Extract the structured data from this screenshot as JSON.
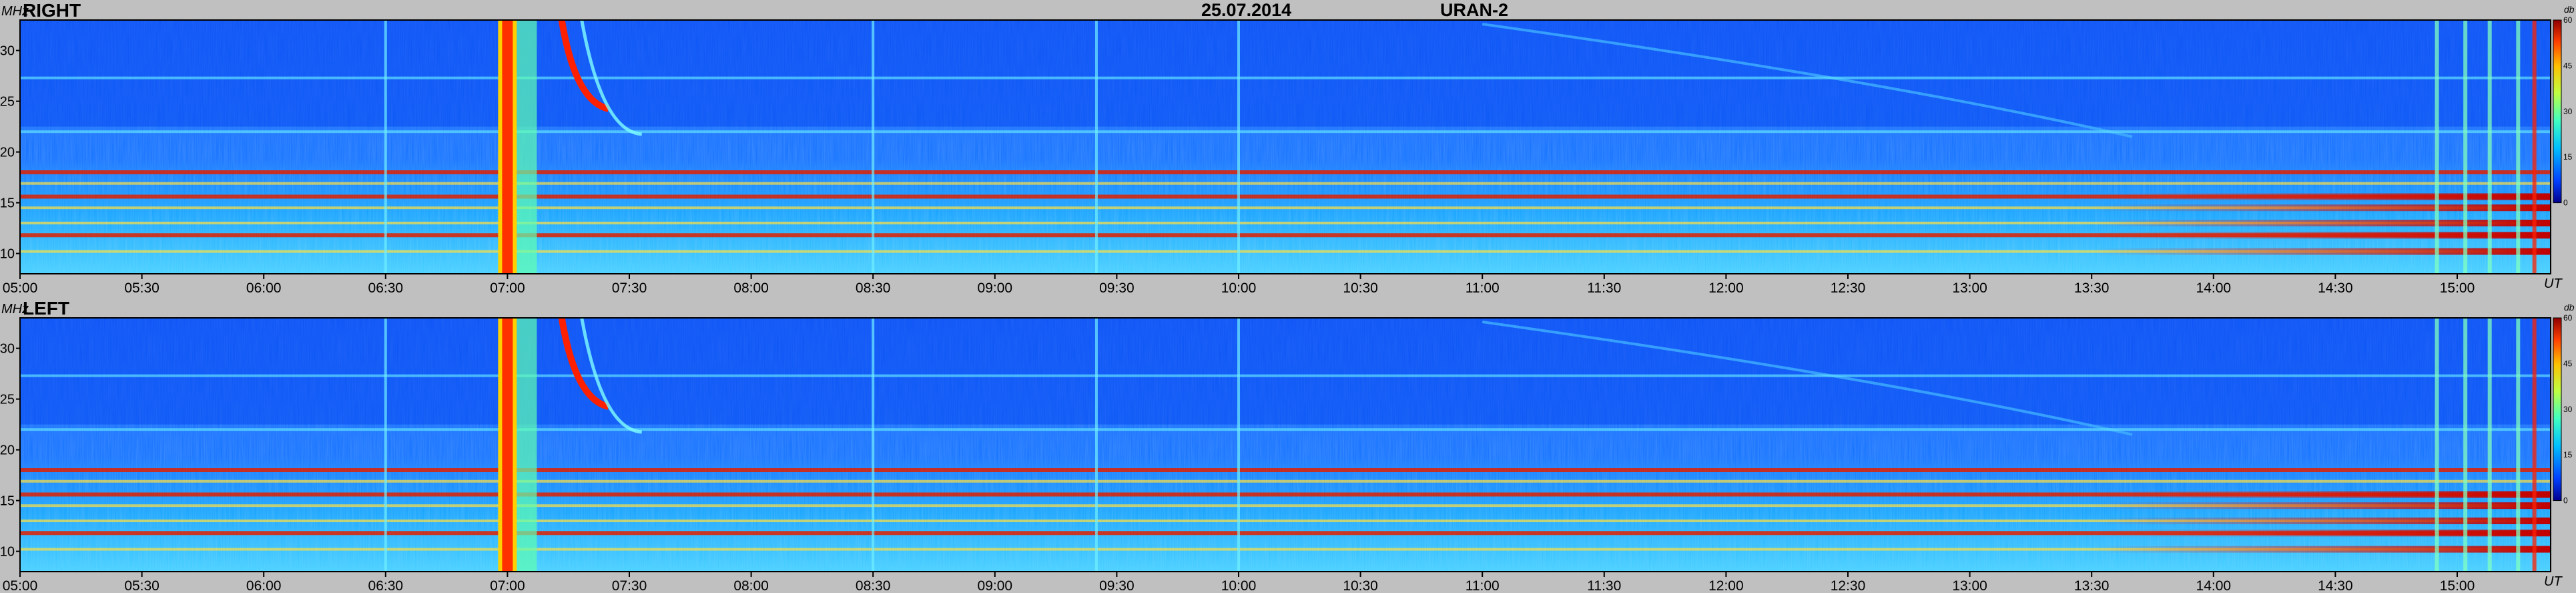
{
  "header": {
    "date": "25.07.2014",
    "instrument": "URAN-2"
  },
  "chart_data": [
    {
      "type": "heatmap",
      "name": "RIGHT",
      "y_unit_label": "MHz",
      "x_unit_label": "UT",
      "colorbar_unit_label": "db",
      "x_ticks": [
        "05:00",
        "05:30",
        "06:00",
        "06:30",
        "07:00",
        "07:30",
        "08:00",
        "08:30",
        "09:00",
        "09:30",
        "10:00",
        "10:30",
        "11:00",
        "11:30",
        "12:00",
        "12:30",
        "13:00",
        "13:30",
        "14:00",
        "14:30",
        "15:00"
      ],
      "y_ticks": [
        "10",
        "15",
        "20",
        "25",
        "30"
      ],
      "colorbar_ticks": [
        "0",
        "15",
        "30",
        "45",
        "60"
      ],
      "xlim": [
        "05:00",
        "15:23"
      ],
      "ylim": [
        8,
        33
      ],
      "zlim": [
        0,
        60
      ],
      "colormap": [
        "#00008f",
        "#0040ff",
        "#00c0ff",
        "#40ffc0",
        "#c0ff40",
        "#ffc000",
        "#ff4000",
        "#8f0000"
      ],
      "features": {
        "band_lines_mhz": [
          10.2,
          11.8,
          13.0,
          14.5,
          15.6,
          16.9,
          18.0,
          22.0,
          27.3
        ],
        "strong_lines_mhz": [
          18.0,
          15.6,
          11.8
        ],
        "burst_times": [
          "07:00"
        ],
        "drifting_bursts": [
          "07:15",
          "07:30"
        ],
        "late_interference_start": "14:55"
      }
    },
    {
      "type": "heatmap",
      "name": "LEFT",
      "y_unit_label": "MHz",
      "x_unit_label": "UT",
      "colorbar_unit_label": "db",
      "x_ticks": [
        "05:00",
        "05:30",
        "06:00",
        "06:30",
        "07:00",
        "07:30",
        "08:00",
        "08:30",
        "09:00",
        "09:30",
        "10:00",
        "10:30",
        "11:00",
        "11:30",
        "12:00",
        "12:30",
        "13:00",
        "13:30",
        "14:00",
        "14:30",
        "15:00"
      ],
      "y_ticks": [
        "10",
        "15",
        "20",
        "25",
        "30"
      ],
      "colorbar_ticks": [
        "0",
        "15",
        "30",
        "45",
        "60"
      ],
      "xlim": [
        "05:00",
        "15:23"
      ],
      "ylim": [
        8,
        33
      ],
      "zlim": [
        0,
        60
      ],
      "colormap": [
        "#00008f",
        "#0040ff",
        "#00c0ff",
        "#40ffc0",
        "#c0ff40",
        "#ffc000",
        "#ff4000",
        "#8f0000"
      ],
      "features": {
        "band_lines_mhz": [
          10.2,
          11.8,
          13.0,
          14.5,
          15.6,
          16.9,
          18.0,
          22.0,
          27.3
        ],
        "strong_lines_mhz": [
          18.0,
          15.6,
          11.8
        ],
        "burst_times": [
          "07:00"
        ],
        "drifting_bursts": [
          "07:15",
          "07:30"
        ],
        "late_interference_start": "14:55"
      }
    }
  ]
}
